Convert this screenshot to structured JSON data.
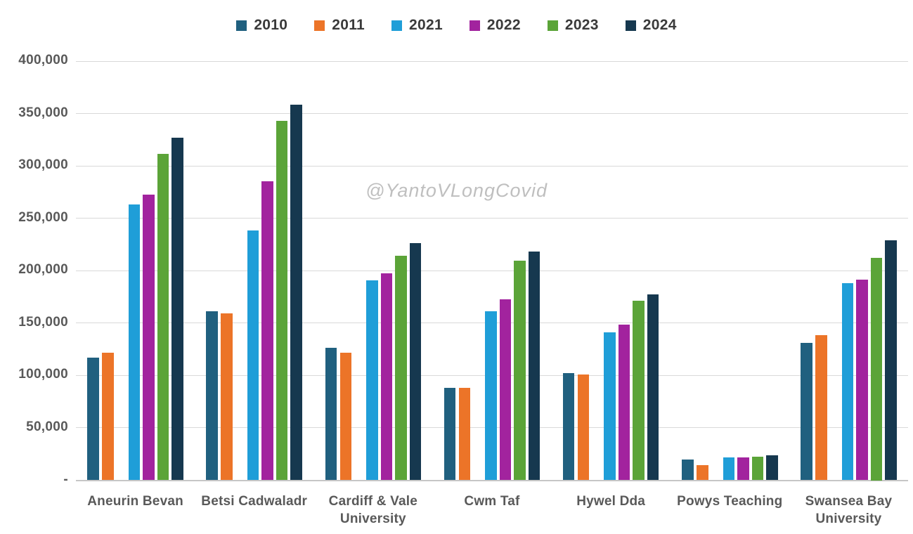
{
  "watermark": "@YantoVLongCovid",
  "chart_data": {
    "type": "bar",
    "title": "",
    "xlabel": "",
    "ylabel": "",
    "ylim": [
      0,
      400000
    ],
    "ytick_interval": 50000,
    "grid": true,
    "legend_position": "top",
    "categories": [
      "Aneurin Bevan",
      "Betsi Cadwaladr",
      "Cardiff & Vale University",
      "Cwm Taf",
      "Hywel Dda",
      "Powys Teaching",
      "Swansea Bay University"
    ],
    "yticks": [
      {
        "value": 0,
        "label": "-"
      },
      {
        "value": 50000,
        "label": "50,000"
      },
      {
        "value": 100000,
        "label": "100,000"
      },
      {
        "value": 150000,
        "label": "150,000"
      },
      {
        "value": 200000,
        "label": "200,000"
      },
      {
        "value": 250000,
        "label": "250,000"
      },
      {
        "value": 300000,
        "label": "300,000"
      },
      {
        "value": 350000,
        "label": "350,000"
      },
      {
        "value": 400000,
        "label": "400,000"
      }
    ],
    "series": [
      {
        "name": "2010",
        "color": "#20607F",
        "values": [
          117000,
          161500,
          126500,
          88500,
          102500,
          19500,
          131000
        ]
      },
      {
        "name": "2011",
        "color": "#EC7428",
        "values": [
          121500,
          159500,
          121500,
          88500,
          101000,
          14500,
          138500
        ]
      },
      {
        "name": "2021",
        "color": "#1F9ED8",
        "values": [
          263000,
          238500,
          190500,
          161000,
          141000,
          22000,
          188000
        ]
      },
      {
        "name": "2022",
        "color": "#A2239E",
        "values": [
          272500,
          285500,
          197500,
          173000,
          148500,
          21500,
          191500
        ]
      },
      {
        "name": "2023",
        "color": "#5BA438",
        "values": [
          311500,
          343000,
          214500,
          209500,
          171500,
          22500,
          212500
        ]
      },
      {
        "name": "2024",
        "color": "#16384F",
        "values": [
          327000,
          358500,
          226500,
          218500,
          177500,
          24000,
          229000
        ]
      }
    ]
  }
}
